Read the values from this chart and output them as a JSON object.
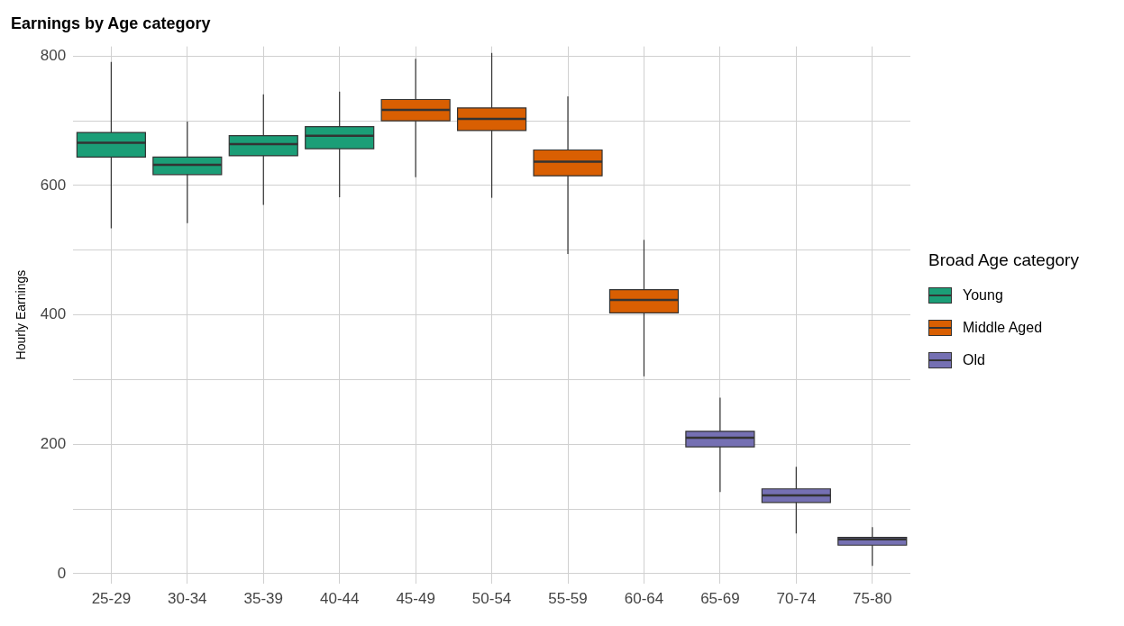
{
  "chart_data": {
    "type": "box",
    "title": "Earnings by Age category",
    "ylabel": "Hourly Earnings",
    "legend_title": "Broad Age category",
    "legend": "right",
    "grid": true,
    "categories": [
      "25-29",
      "30-34",
      "35-39",
      "40-44",
      "45-49",
      "50-54",
      "55-59",
      "60-64",
      "65-69",
      "70-74",
      "75-80"
    ],
    "ylim": [
      -15,
      815
    ],
    "yticks": [
      0,
      {
        "value": 100,
        "label": null
      },
      200,
      {
        "value": 300,
        "label": null
      },
      400,
      {
        "value": 500,
        "label": null
      },
      600,
      {
        "value": 700,
        "label": null
      },
      800
    ],
    "series": [
      {
        "name": "Young",
        "color": "#1b9e77",
        "boxes": [
          {
            "low": 534,
            "q1": 644,
            "median": 666,
            "q3": 682,
            "high": 791
          },
          {
            "low": 542,
            "q1": 617,
            "median": 632,
            "q3": 644,
            "high": 699
          },
          {
            "low": 570,
            "q1": 646,
            "median": 664,
            "q3": 677,
            "high": 741
          },
          {
            "low": 582,
            "q1": 657,
            "median": 677,
            "q3": 691,
            "high": 745
          },
          null,
          null,
          null,
          null,
          null,
          null,
          null
        ]
      },
      {
        "name": "Middle Aged",
        "color": "#d95f02",
        "boxes": [
          null,
          null,
          null,
          null,
          {
            "low": 613,
            "q1": 700,
            "median": 717,
            "q3": 733,
            "high": 796
          },
          {
            "low": 581,
            "q1": 685,
            "median": 703,
            "q3": 720,
            "high": 805
          },
          {
            "low": 494,
            "q1": 615,
            "median": 637,
            "q3": 655,
            "high": 738
          },
          {
            "low": 305,
            "q1": 403,
            "median": 423,
            "q3": 439,
            "high": 516
          },
          null,
          null,
          null
        ]
      },
      {
        "name": "Old",
        "color": "#7570b3",
        "boxes": [
          null,
          null,
          null,
          null,
          null,
          null,
          null,
          null,
          {
            "low": 126,
            "q1": 196,
            "median": 210,
            "q3": 220,
            "high": 272
          },
          {
            "low": 62,
            "q1": 110,
            "median": 121,
            "q3": 131,
            "high": 165
          },
          {
            "low": 12,
            "q1": 44,
            "median": 53,
            "q3": 56,
            "high": 72
          }
        ]
      }
    ]
  }
}
